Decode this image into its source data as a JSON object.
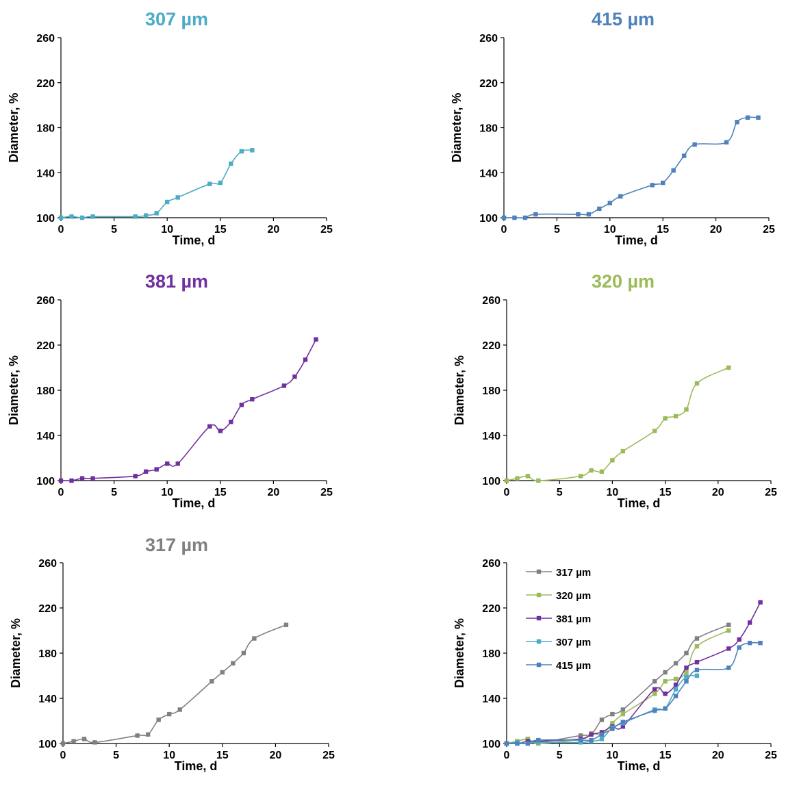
{
  "colors": {
    "307": "#4BACC6",
    "415": "#4F81BD",
    "381": "#7030A0",
    "320": "#9BBB59",
    "317": "#808080"
  },
  "chart_data": [
    {
      "type": "line",
      "title": "307 µm",
      "color": "#4BACC6",
      "xlabel": "Time, d",
      "ylabel": "Diameter, %",
      "xlim": [
        0,
        25
      ],
      "ylim": [
        100,
        260
      ],
      "xticks": [
        0,
        5,
        10,
        15,
        20,
        25
      ],
      "yticks": [
        100,
        140,
        180,
        220,
        260
      ],
      "series": [
        {
          "x": [
            0,
            1,
            2,
            3,
            7,
            8,
            9,
            10,
            11,
            14,
            15,
            16,
            17,
            18
          ],
          "y": [
            100,
            101,
            100,
            101,
            101,
            102,
            104,
            114,
            118,
            130,
            131,
            148,
            159,
            160
          ]
        }
      ]
    },
    {
      "type": "line",
      "title": "415 µm",
      "color": "#4F81BD",
      "xlabel": "Time, d",
      "ylabel": "Diameter, %",
      "xlim": [
        0,
        25
      ],
      "ylim": [
        100,
        260
      ],
      "xticks": [
        0,
        5,
        10,
        15,
        20,
        25
      ],
      "yticks": [
        100,
        140,
        180,
        220,
        260
      ],
      "series": [
        {
          "x": [
            0,
            1,
            2,
            3,
            7,
            8,
            9,
            10,
            11,
            14,
            15,
            16,
            17,
            18,
            21,
            22,
            23,
            24
          ],
          "y": [
            100,
            100,
            100,
            103,
            103,
            103,
            108,
            113,
            119,
            129,
            131,
            142,
            155,
            165,
            167,
            185,
            189,
            189
          ]
        }
      ]
    },
    {
      "type": "line",
      "title": "381 µm",
      "color": "#7030A0",
      "xlabel": "Time, d",
      "ylabel": "Diameter, %",
      "xlim": [
        0,
        25
      ],
      "ylim": [
        100,
        260
      ],
      "xticks": [
        0,
        5,
        10,
        15,
        20,
        25
      ],
      "yticks": [
        100,
        140,
        180,
        220,
        260
      ],
      "series": [
        {
          "x": [
            0,
            1,
            2,
            3,
            7,
            8,
            9,
            10,
            11,
            14,
            15,
            16,
            17,
            18,
            21,
            22,
            23,
            24
          ],
          "y": [
            100,
            100,
            102,
            102,
            104,
            108,
            110,
            115,
            115,
            148,
            144,
            152,
            167,
            172,
            184,
            192,
            207,
            225
          ]
        }
      ]
    },
    {
      "type": "line",
      "title": "320 µm",
      "color": "#9BBB59",
      "xlabel": "Time, d",
      "ylabel": "Diameter, %",
      "xlim": [
        0,
        25
      ],
      "ylim": [
        100,
        260
      ],
      "xticks": [
        0,
        5,
        10,
        15,
        20,
        25
      ],
      "yticks": [
        100,
        140,
        180,
        220,
        260
      ],
      "series": [
        {
          "x": [
            0,
            1,
            2,
            3,
            7,
            8,
            9,
            10,
            11,
            14,
            15,
            16,
            17,
            18,
            21
          ],
          "y": [
            100,
            102,
            104,
            100,
            104,
            109,
            108,
            118,
            126,
            144,
            155,
            157,
            163,
            186,
            200
          ]
        }
      ]
    },
    {
      "type": "line",
      "title": "317 µm",
      "color": "#808080",
      "xlabel": "Time, d",
      "ylabel": "Diameter, %",
      "xlim": [
        0,
        25
      ],
      "ylim": [
        100,
        260
      ],
      "xticks": [
        0,
        5,
        10,
        15,
        20,
        25
      ],
      "yticks": [
        100,
        140,
        180,
        220,
        260
      ],
      "series": [
        {
          "x": [
            0,
            1,
            2,
            3,
            7,
            8,
            9,
            10,
            11,
            14,
            15,
            16,
            17,
            18,
            21
          ],
          "y": [
            100,
            102,
            104,
            101,
            107,
            108,
            121,
            126,
            130,
            155,
            163,
            171,
            180,
            193,
            205
          ]
        }
      ]
    },
    {
      "type": "line",
      "title": "",
      "xlabel": "Time, d",
      "ylabel": "Diameter, %",
      "xlim": [
        0,
        25
      ],
      "ylim": [
        100,
        260
      ],
      "xticks": [
        0,
        5,
        10,
        15,
        20,
        25
      ],
      "yticks": [
        100,
        140,
        180,
        220,
        260
      ],
      "legend": "top-left",
      "series": [
        {
          "name": "317 µm",
          "color": "#808080",
          "x": [
            0,
            1,
            2,
            3,
            7,
            8,
            9,
            10,
            11,
            14,
            15,
            16,
            17,
            18,
            21
          ],
          "y": [
            100,
            102,
            104,
            101,
            107,
            108,
            121,
            126,
            130,
            155,
            163,
            171,
            180,
            193,
            205
          ]
        },
        {
          "name": "320 µm",
          "color": "#9BBB59",
          "x": [
            0,
            1,
            2,
            3,
            7,
            8,
            9,
            10,
            11,
            14,
            15,
            16,
            17,
            18,
            21
          ],
          "y": [
            100,
            102,
            104,
            100,
            104,
            109,
            108,
            118,
            126,
            144,
            155,
            157,
            163,
            186,
            200
          ]
        },
        {
          "name": "381 µm",
          "color": "#7030A0",
          "x": [
            0,
            1,
            2,
            3,
            7,
            8,
            9,
            10,
            11,
            14,
            15,
            16,
            17,
            18,
            21,
            22,
            23,
            24
          ],
          "y": [
            100,
            100,
            102,
            102,
            104,
            108,
            110,
            115,
            115,
            148,
            144,
            152,
            167,
            172,
            184,
            192,
            207,
            225
          ]
        },
        {
          "name": "307 µm",
          "color": "#4BACC6",
          "x": [
            0,
            1,
            2,
            3,
            7,
            8,
            9,
            10,
            11,
            14,
            15,
            16,
            17,
            18
          ],
          "y": [
            100,
            101,
            100,
            101,
            101,
            102,
            104,
            114,
            118,
            130,
            131,
            148,
            159,
            160
          ]
        },
        {
          "name": "415 µm",
          "color": "#4F81BD",
          "x": [
            0,
            1,
            2,
            3,
            7,
            8,
            9,
            10,
            11,
            14,
            15,
            16,
            17,
            18,
            21,
            22,
            23,
            24
          ],
          "y": [
            100,
            100,
            100,
            103,
            103,
            103,
            108,
            113,
            119,
            129,
            131,
            142,
            155,
            165,
            167,
            185,
            189,
            189
          ]
        }
      ]
    }
  ]
}
